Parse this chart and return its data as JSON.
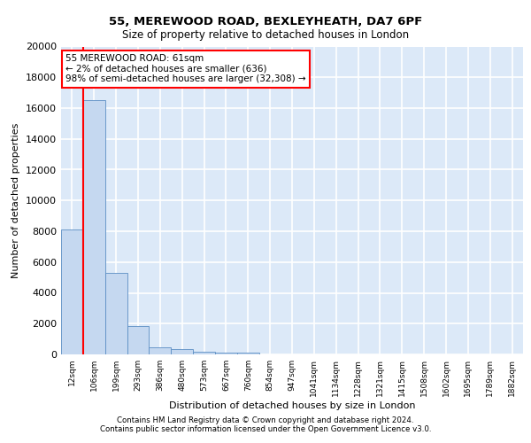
{
  "title_line1": "55, MEREWOOD ROAD, BEXLEYHEATH, DA7 6PF",
  "title_line2": "Size of property relative to detached houses in London",
  "xlabel": "Distribution of detached houses by size in London",
  "ylabel": "Number of detached properties",
  "categories": [
    "12sqm",
    "106sqm",
    "199sqm",
    "293sqm",
    "386sqm",
    "480sqm",
    "573sqm",
    "667sqm",
    "760sqm",
    "854sqm",
    "947sqm",
    "1041sqm",
    "1134sqm",
    "1228sqm",
    "1321sqm",
    "1415sqm",
    "1508sqm",
    "1602sqm",
    "1695sqm",
    "1789sqm",
    "1882sqm"
  ],
  "bar_heights": [
    8100,
    16500,
    5300,
    1850,
    480,
    330,
    180,
    120,
    100,
    0,
    0,
    0,
    0,
    0,
    0,
    0,
    0,
    0,
    0,
    0,
    0
  ],
  "bar_color": "#c5d8f0",
  "bar_edge_color": "#5b8ec4",
  "vline_x": 0.5,
  "annotation_text": "55 MEREWOOD ROAD: 61sqm\n← 2% of detached houses are smaller (636)\n98% of semi-detached houses are larger (32,308) →",
  "annotation_box_color": "white",
  "annotation_box_edge_color": "red",
  "vline_color": "red",
  "ylim": [
    0,
    20000
  ],
  "yticks": [
    0,
    2000,
    4000,
    6000,
    8000,
    10000,
    12000,
    14000,
    16000,
    18000,
    20000
  ],
  "background_color": "#dce9f8",
  "grid_color": "white",
  "footer_line1": "Contains HM Land Registry data © Crown copyright and database right 2024.",
  "footer_line2": "Contains public sector information licensed under the Open Government Licence v3.0."
}
